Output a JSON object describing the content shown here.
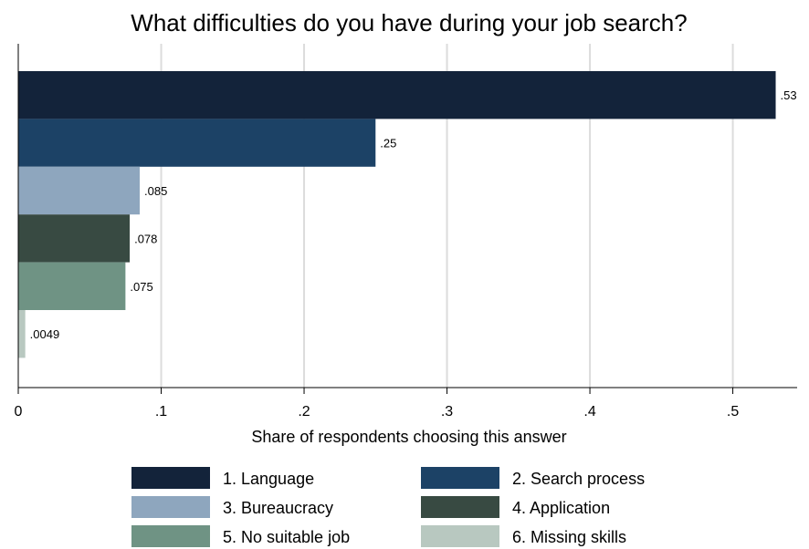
{
  "chart_data": {
    "type": "bar",
    "orientation": "horizontal",
    "title": "What difficulties do you have during your job search?",
    "xlabel": "Share of respondents choosing this answer",
    "xlim": [
      0,
      0.545
    ],
    "xticks": [
      0,
      0.1,
      0.2,
      0.3,
      0.4,
      0.5
    ],
    "xtick_labels": [
      "0",
      ".1",
      ".2",
      ".3",
      ".4",
      ".5"
    ],
    "grid": "vertical",
    "legend": "bottom",
    "series": [
      {
        "name": "1. Language",
        "value": 0.53,
        "label": ".53",
        "color": "#13233a"
      },
      {
        "name": "2. Search process",
        "value": 0.25,
        "label": ".25",
        "color": "#1c4266"
      },
      {
        "name": "3. Bureaucracy",
        "value": 0.085,
        "label": ".085",
        "color": "#8ea6be"
      },
      {
        "name": "4. Application",
        "value": 0.078,
        "label": ".078",
        "color": "#384a42"
      },
      {
        "name": "5. No suitable job",
        "value": 0.075,
        "label": ".075",
        "color": "#6f9384"
      },
      {
        "name": "6. Missing skills",
        "value": 0.0049,
        "label": ".0049",
        "color": "#b8c8c0"
      }
    ]
  }
}
